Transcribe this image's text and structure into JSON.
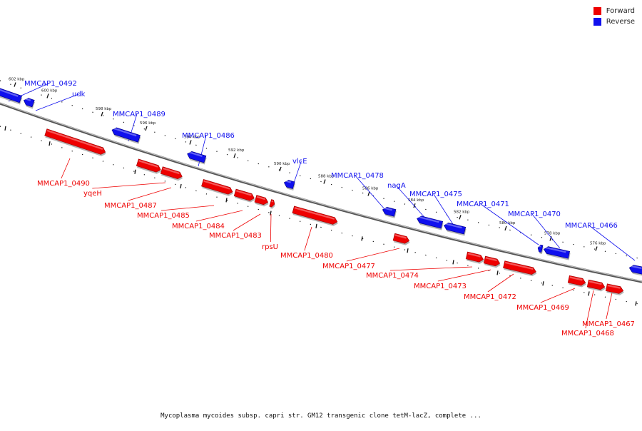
{
  "title": "Mycoplasma mycoides subsp. capri str. GM12 transgenic clone tetM-lacZ, complete ...",
  "legend": [
    {
      "label": "Forward",
      "color": "#ee0000"
    },
    {
      "label": "Reverse",
      "color": "#1010ee"
    }
  ],
  "colors": {
    "forward": "#ee0000",
    "reverse": "#1010ee",
    "backbone": "#888888"
  },
  "ticks": [
    "602 kbp",
    "600 kbp",
    "598 kbp",
    "596 kbp",
    "594 kbp",
    "592 kbp",
    "590 kbp",
    "588 kbp",
    "586 kbp",
    "584 kbp",
    "582 kbp",
    "580 kbp",
    "578 kbp",
    "576 kbp"
  ],
  "genes": [
    {
      "name": "MMCAP1_0492",
      "strand": "reverse"
    },
    {
      "name": "udk",
      "strand": "reverse"
    },
    {
      "name": "MMCAP1_0490",
      "strand": "forward"
    },
    {
      "name": "MMCAP1_0489",
      "strand": "reverse"
    },
    {
      "name": "yqeH",
      "strand": "forward"
    },
    {
      "name": "MMCAP1_0487",
      "strand": "forward"
    },
    {
      "name": "MMCAP1_0486",
      "strand": "reverse"
    },
    {
      "name": "MMCAP1_0485",
      "strand": "forward"
    },
    {
      "name": "MMCAP1_0484",
      "strand": "forward"
    },
    {
      "name": "MMCAP1_0483",
      "strand": "forward"
    },
    {
      "name": "rpsU",
      "strand": "forward"
    },
    {
      "name": "vlcE",
      "strand": "reverse"
    },
    {
      "name": "MMCAP1_0480",
      "strand": "forward"
    },
    {
      "name": "MMCAP1_0478",
      "strand": "reverse"
    },
    {
      "name": "MMCAP1_0477",
      "strand": "forward"
    },
    {
      "name": "nagA",
      "strand": "reverse"
    },
    {
      "name": "MMCAP1_0475",
      "strand": "reverse"
    },
    {
      "name": "MMCAP1_0474",
      "strand": "forward"
    },
    {
      "name": "MMCAP1_0473",
      "strand": "forward"
    },
    {
      "name": "MMCAP1_0472",
      "strand": "forward"
    },
    {
      "name": "MMCAP1_0471",
      "strand": "reverse"
    },
    {
      "name": "MMCAP1_0470",
      "strand": "reverse"
    },
    {
      "name": "MMCAP1_0469",
      "strand": "forward"
    },
    {
      "name": "MMCAP1_0468",
      "strand": "forward"
    },
    {
      "name": "MMCAP1_0467",
      "strand": "forward"
    },
    {
      "name": "MMCAP1_0466",
      "strand": "reverse"
    }
  ]
}
